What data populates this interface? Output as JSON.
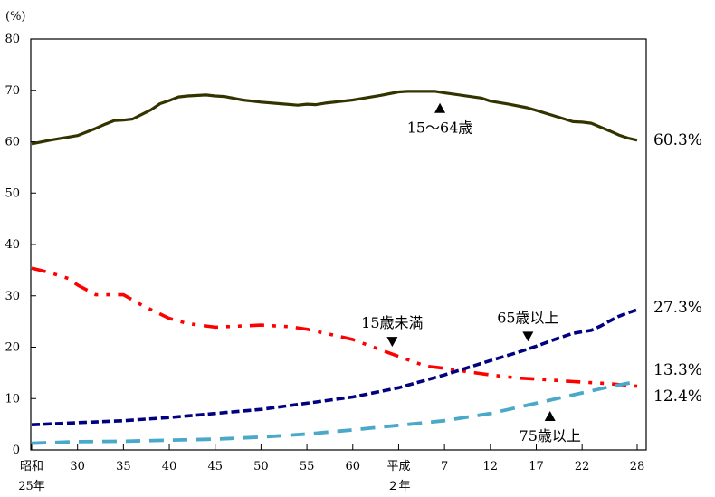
{
  "chart_data": {
    "type": "line",
    "y_unit_label": "(%)",
    "ylim": [
      0,
      80
    ],
    "y_ticks": [
      0,
      10,
      20,
      30,
      40,
      50,
      60,
      70,
      80
    ],
    "x_range": [
      1950,
      2016
    ],
    "x_ticks": [
      {
        "x": 1950,
        "label": "昭和",
        "label2": "25年"
      },
      {
        "x": 1955,
        "label": "30"
      },
      {
        "x": 1960,
        "label": "35"
      },
      {
        "x": 1965,
        "label": "40"
      },
      {
        "x": 1970,
        "label": "45"
      },
      {
        "x": 1975,
        "label": "50"
      },
      {
        "x": 1980,
        "label": "55"
      },
      {
        "x": 1985,
        "label": "60"
      },
      {
        "x": 1990,
        "label": "平成",
        "label2": "２年"
      },
      {
        "x": 1995,
        "label": "7"
      },
      {
        "x": 2000,
        "label": "12"
      },
      {
        "x": 2005,
        "label": "17"
      },
      {
        "x": 2010,
        "label": "22"
      },
      {
        "x": 2016,
        "label": "28"
      }
    ],
    "grid": false,
    "legend": "none",
    "series": [
      {
        "name": "15～64歳",
        "color": "#333300",
        "style": "solid",
        "end_label": "60.3%",
        "points": [
          [
            1950,
            59.6
          ],
          [
            1952,
            60.3
          ],
          [
            1953,
            60.6
          ],
          [
            1954,
            60.9
          ],
          [
            1955,
            61.2
          ],
          [
            1957,
            62.6
          ],
          [
            1958,
            63.4
          ],
          [
            1959,
            64.1
          ],
          [
            1960,
            64.2
          ],
          [
            1961,
            64.4
          ],
          [
            1963,
            66.2
          ],
          [
            1964,
            67.4
          ],
          [
            1965,
            68.0
          ],
          [
            1966,
            68.7
          ],
          [
            1967,
            68.9
          ],
          [
            1969,
            69.1
          ],
          [
            1970,
            68.9
          ],
          [
            1971,
            68.8
          ],
          [
            1973,
            68.1
          ],
          [
            1975,
            67.7
          ],
          [
            1977,
            67.4
          ],
          [
            1979,
            67.1
          ],
          [
            1980,
            67.3
          ],
          [
            1981,
            67.2
          ],
          [
            1982,
            67.5
          ],
          [
            1984,
            67.9
          ],
          [
            1985,
            68.1
          ],
          [
            1986,
            68.4
          ],
          [
            1988,
            69.0
          ],
          [
            1990,
            69.7
          ],
          [
            1991,
            69.8
          ],
          [
            1992,
            69.8
          ],
          [
            1993,
            69.8
          ],
          [
            1994,
            69.8
          ],
          [
            1995,
            69.5
          ],
          [
            1997,
            69.0
          ],
          [
            1999,
            68.5
          ],
          [
            2000,
            67.9
          ],
          [
            2002,
            67.3
          ],
          [
            2004,
            66.6
          ],
          [
            2005,
            66.1
          ],
          [
            2007,
            65.0
          ],
          [
            2009,
            63.9
          ],
          [
            2010,
            63.8
          ],
          [
            2011,
            63.6
          ],
          [
            2013,
            62.1
          ],
          [
            2014,
            61.3
          ],
          [
            2015,
            60.7
          ],
          [
            2016,
            60.3
          ]
        ]
      },
      {
        "name": "15歳未満",
        "color": "#ff0000",
        "style": "dashdotdot",
        "end_label": "12.4%",
        "points": [
          [
            1950,
            35.4
          ],
          [
            1952,
            34.5
          ],
          [
            1954,
            33.4
          ],
          [
            1955,
            32.1
          ],
          [
            1957,
            30.2
          ],
          [
            1960,
            30.2
          ],
          [
            1962,
            28.2
          ],
          [
            1965,
            25.6
          ],
          [
            1967,
            24.6
          ],
          [
            1970,
            23.9
          ],
          [
            1975,
            24.3
          ],
          [
            1978,
            24.0
          ],
          [
            1980,
            23.5
          ],
          [
            1983,
            22.3
          ],
          [
            1985,
            21.5
          ],
          [
            1988,
            19.5
          ],
          [
            1990,
            18.2
          ],
          [
            1993,
            16.3
          ],
          [
            1995,
            15.9
          ],
          [
            1998,
            15.1
          ],
          [
            2000,
            14.6
          ],
          [
            2003,
            14.0
          ],
          [
            2005,
            13.8
          ],
          [
            2010,
            13.2
          ],
          [
            2013,
            12.9
          ],
          [
            2016,
            12.4
          ]
        ]
      },
      {
        "name": "65歳以上",
        "color": "#000080",
        "style": "dashed",
        "end_label": "27.3%",
        "points": [
          [
            1950,
            4.9
          ],
          [
            1955,
            5.3
          ],
          [
            1960,
            5.7
          ],
          [
            1965,
            6.3
          ],
          [
            1970,
            7.1
          ],
          [
            1975,
            7.9
          ],
          [
            1980,
            9.1
          ],
          [
            1985,
            10.3
          ],
          [
            1990,
            12.1
          ],
          [
            1995,
            14.6
          ],
          [
            2000,
            17.4
          ],
          [
            2003,
            19.0
          ],
          [
            2005,
            20.2
          ],
          [
            2007,
            21.5
          ],
          [
            2009,
            22.7
          ],
          [
            2010,
            23.0
          ],
          [
            2011,
            23.3
          ],
          [
            2012,
            24.1
          ],
          [
            2013,
            25.1
          ],
          [
            2014,
            26.0
          ],
          [
            2015,
            26.7
          ],
          [
            2016,
            27.3
          ]
        ]
      },
      {
        "name": "75歳以上",
        "color": "#4aa8c8",
        "style": "longdash",
        "end_label": "13.3%",
        "points": [
          [
            1950,
            1.3
          ],
          [
            1955,
            1.6
          ],
          [
            1960,
            1.7
          ],
          [
            1965,
            1.9
          ],
          [
            1970,
            2.1
          ],
          [
            1975,
            2.5
          ],
          [
            1980,
            3.1
          ],
          [
            1985,
            3.9
          ],
          [
            1990,
            4.8
          ],
          [
            1995,
            5.7
          ],
          [
            2000,
            7.1
          ],
          [
            2005,
            9.1
          ],
          [
            2010,
            11.1
          ],
          [
            2013,
            12.3
          ],
          [
            2016,
            13.3
          ]
        ]
      }
    ],
    "annotations": [
      {
        "text": "15～64歳",
        "series": "15～64歳",
        "x": 1994.5,
        "arrow": "up"
      },
      {
        "text": "15歳未満",
        "series": "15歳未満",
        "x": 1989.3,
        "arrow": "down"
      },
      {
        "text": "65歳以上",
        "series": "65歳以上",
        "x": 2004.1,
        "arrow": "down"
      },
      {
        "text": "75歳以上",
        "series": "75歳以上",
        "x": 2006.5,
        "arrow": "up"
      }
    ]
  }
}
